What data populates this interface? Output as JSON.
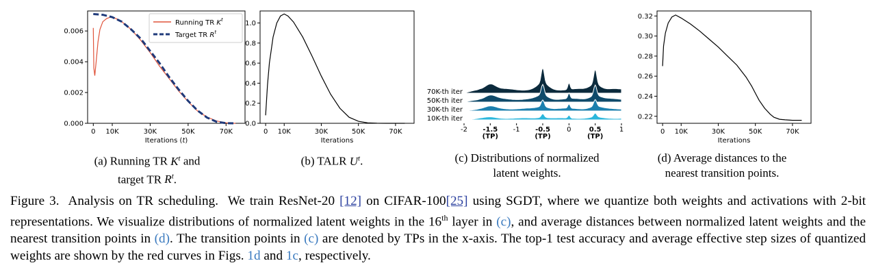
{
  "chart_data": [
    {
      "type": "line",
      "id": "a",
      "xlabel": "Iterations (t)",
      "xlim": [
        -3000,
        80000
      ],
      "ylim": [
        0,
        0.0073
      ],
      "xticks": [
        0,
        10000,
        30000,
        50000,
        70000
      ],
      "xtick_labels": [
        "0",
        "10K",
        "30K",
        "50K",
        "70K"
      ],
      "yticks": [
        0,
        0.002,
        0.004,
        0.006
      ],
      "ytick_labels": [
        "0.000",
        "0.002",
        "0.004",
        "0.006"
      ],
      "legend": {
        "placement": "top-right",
        "entries": [
          "Running TR K",
          "Target TR R"
        ]
      },
      "series": [
        {
          "name": "Running TR K^t",
          "color": "#e0533a",
          "style": "solid",
          "x": [
            0,
            300,
            800,
            1500,
            2500,
            3500,
            5000,
            7000,
            9000,
            10000,
            12000,
            15000,
            20000,
            25000,
            30000,
            35000,
            40000,
            45000,
            50000,
            55000,
            60000,
            65000,
            70000,
            73000,
            75000
          ],
          "y": [
            0.0062,
            0.0036,
            0.0031,
            0.004,
            0.0053,
            0.0061,
            0.0066,
            0.0068,
            0.0069,
            0.0069,
            0.0068,
            0.0066,
            0.0061,
            0.0054,
            0.0046,
            0.0037,
            0.0029,
            0.0021,
            0.0014,
            0.0008,
            0.0004,
            0.00015,
            3e-05,
            0.0,
            0.0
          ]
        },
        {
          "name": "Target TR R^t",
          "color": "#1f3a7a",
          "style": "dashed",
          "x": [
            0,
            5000,
            10000,
            15000,
            20000,
            25000,
            30000,
            35000,
            40000,
            45000,
            50000,
            55000,
            60000,
            65000,
            70000,
            75000
          ],
          "y": [
            0.0071,
            0.00705,
            0.0069,
            0.0066,
            0.0061,
            0.0055,
            0.0047,
            0.0039,
            0.003,
            0.0022,
            0.00145,
            0.00083,
            0.00037,
            0.0001,
            1e-05,
            0.0
          ]
        }
      ]
    },
    {
      "type": "line",
      "id": "b",
      "xlabel": "Iterations",
      "xlim": [
        -3000,
        80000
      ],
      "ylim": [
        0,
        1.12
      ],
      "xticks": [
        0,
        10000,
        30000,
        50000,
        70000
      ],
      "xtick_labels": [
        "0",
        "10K",
        "30K",
        "50K",
        "70K"
      ],
      "yticks": [
        0,
        0.2,
        0.4,
        0.6,
        0.8,
        1.0
      ],
      "ytick_labels": [
        "0.0",
        "0.2",
        "0.4",
        "0.6",
        "0.8",
        "1.0"
      ],
      "series": [
        {
          "name": "TALR U^t",
          "color": "#000000",
          "x": [
            0,
            1000,
            2000,
            4000,
            6000,
            8000,
            10000,
            12000,
            15000,
            20000,
            25000,
            30000,
            35000,
            40000,
            45000,
            50000,
            55000,
            60000,
            65000,
            70000,
            75000
          ],
          "y": [
            0.08,
            0.38,
            0.6,
            0.86,
            1.0,
            1.07,
            1.09,
            1.07,
            1.01,
            0.86,
            0.67,
            0.47,
            0.29,
            0.15,
            0.06,
            0.02,
            0.005,
            0.001,
            0.0,
            0.0,
            0.0
          ]
        }
      ]
    },
    {
      "type": "area",
      "id": "c",
      "xlim": [
        -2,
        1
      ],
      "xticks": [
        -2,
        -1.5,
        -1,
        -0.5,
        0,
        0.5,
        1
      ],
      "xtick_labels": [
        "-2",
        "-1.5",
        "-1",
        "-0.5",
        "0",
        "0.5",
        "1"
      ],
      "tp_ticks": [
        -1.5,
        -0.5,
        0.5
      ],
      "tp_label": "(TP)",
      "series": [
        {
          "name": "70K-th iter",
          "color": "#0b2a3c"
        },
        {
          "name": "50K-th iter",
          "color": "#0f4a6a"
        },
        {
          "name": "30K-th iter",
          "color": "#1b7fae"
        },
        {
          "name": "10K-th iter",
          "color": "#2cb7dc"
        }
      ]
    },
    {
      "type": "line",
      "id": "d",
      "xlabel": "Iterations",
      "xlim": [
        -3000,
        80000
      ],
      "ylim": [
        0.213,
        0.325
      ],
      "xticks": [
        0,
        10000,
        30000,
        50000,
        70000
      ],
      "xtick_labels": [
        "0",
        "10K",
        "30K",
        "50K",
        "70K"
      ],
      "yticks": [
        0.22,
        0.24,
        0.26,
        0.28,
        0.3,
        0.32
      ],
      "ytick_labels": [
        "0.22",
        "0.24",
        "0.26",
        "0.28",
        "0.30",
        "0.32"
      ],
      "series": [
        {
          "name": "Average distance",
          "color": "#000000",
          "x": [
            0,
            500,
            1500,
            3000,
            5000,
            7000,
            10000,
            15000,
            20000,
            25000,
            30000,
            35000,
            40000,
            45000,
            48000,
            50000,
            52000,
            55000,
            58000,
            60000,
            63000,
            66000,
            70000,
            75000
          ],
          "y": [
            0.27,
            0.29,
            0.303,
            0.313,
            0.319,
            0.321,
            0.318,
            0.312,
            0.305,
            0.297,
            0.289,
            0.28,
            0.271,
            0.259,
            0.25,
            0.243,
            0.236,
            0.228,
            0.222,
            0.219,
            0.217,
            0.2165,
            0.216,
            0.216
          ]
        }
      ]
    }
  ],
  "subcaptions": {
    "a_line1": "(a) Running TR ",
    "a_line2": "target TR ",
    "b_line1": "(b) TALR ",
    "c_line1": "(c) Distributions of normalized",
    "c_line2": "latent weights.",
    "d_line1": "(d) Average distances to the",
    "d_line2": "nearest transition points."
  },
  "caption": {
    "figure_label": "Figure 3.",
    "title": "Analysis on TR scheduling.",
    "s1_start": "We train ResNet-20",
    "cite1": "[12]",
    "s1_mid": "on CIFAR-100",
    "cite2": "[25]",
    "s1_end": "using SGDT, where we quantize both weights and activations with 2-bit representations. We visualize distributions of normalized latent weights in the 16",
    "superscript": "th",
    "s2_mid": "layer in",
    "ref_c": "(c)",
    "s2_end": ", and average distances between normalized latent weights and the nearest transition points in",
    "ref_d": "(d)",
    "s3_start": ". The transition points in",
    "s3_end": "are denoted by TPs in the x-axis. The top-1 test accuracy and average effective step sizes of quantized weights are shown by the red curves in Figs.",
    "ref_1d": "1d",
    "and": "and",
    "ref_1c": "1c",
    "end": ", respectively."
  }
}
